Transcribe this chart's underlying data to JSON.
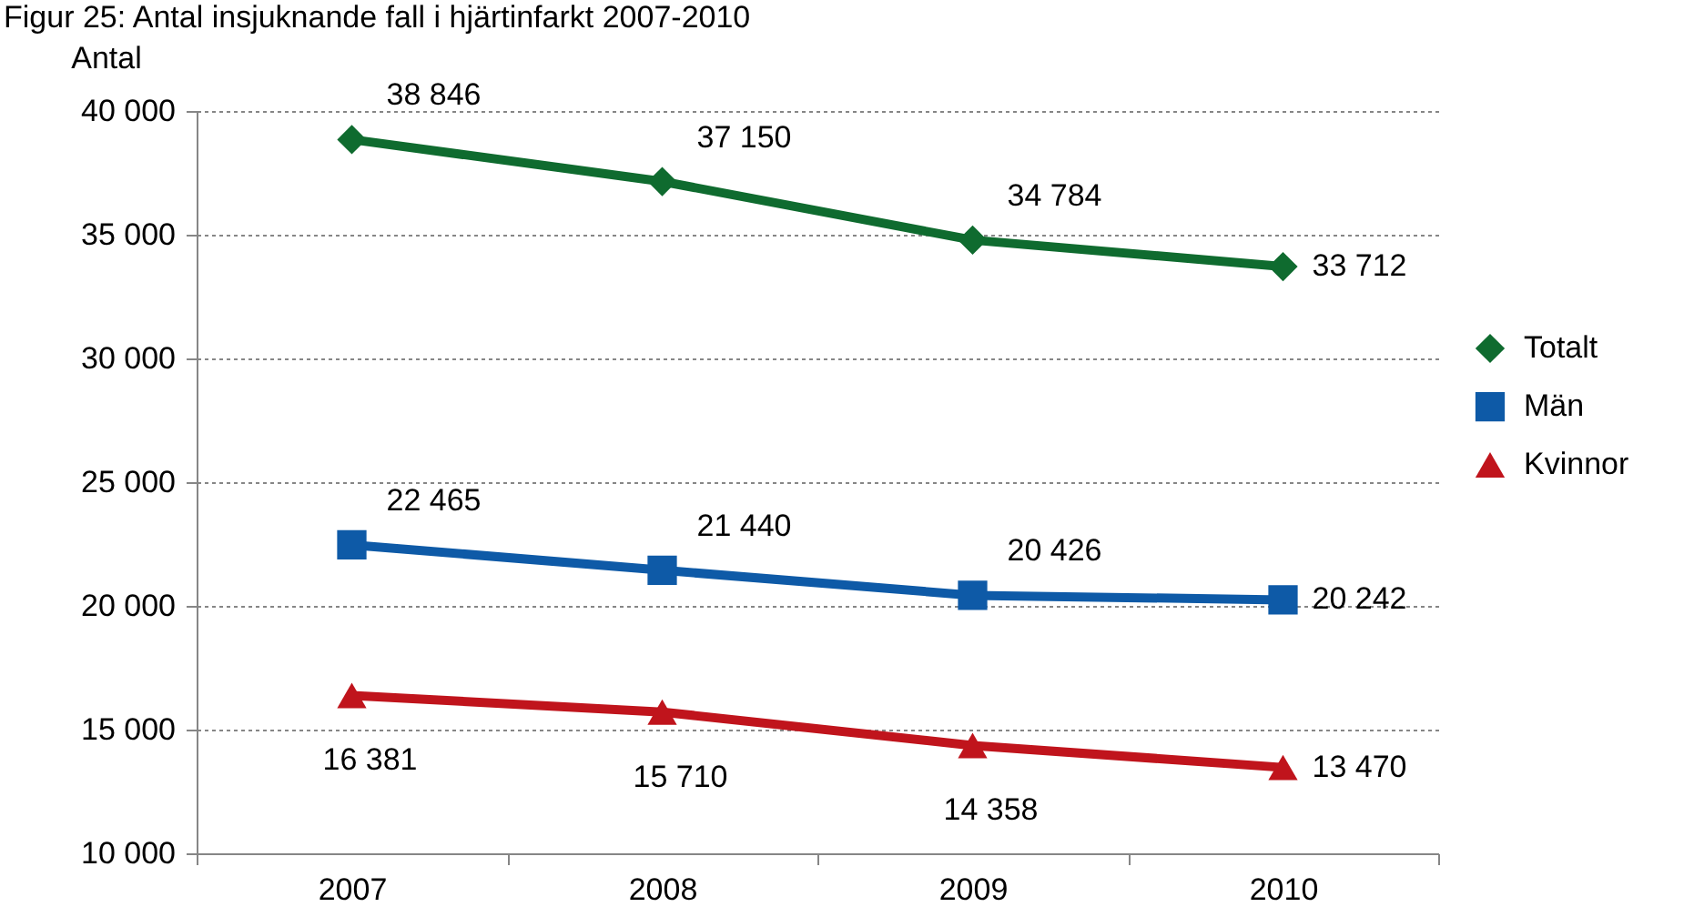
{
  "chart_data": {
    "type": "line",
    "title": "Figur 25: Antal insjuknande fall i hjärtinfarkt 2007-2010",
    "ylabel": "Antal",
    "categories": [
      "2007",
      "2008",
      "2009",
      "2010"
    ],
    "series": [
      {
        "name": "Totalt",
        "color": "#0f6b2f",
        "marker": "diamond",
        "values": [
          38846,
          37150,
          34784,
          33712
        ],
        "value_labels": [
          "38 846",
          "37 150",
          "34 784",
          "33 712"
        ]
      },
      {
        "name": "Män",
        "color": "#0e5aa7",
        "marker": "square",
        "values": [
          22465,
          21440,
          20426,
          20242
        ],
        "value_labels": [
          "22 465",
          "21 440",
          "20 426",
          "20 242"
        ]
      },
      {
        "name": "Kvinnor",
        "color": "#c0141c",
        "marker": "triangle",
        "values": [
          16381,
          15710,
          14358,
          13470
        ],
        "value_labels": [
          "16 381",
          "15 710",
          "14 358",
          "13 470"
        ]
      }
    ],
    "ylim": [
      10000,
      40000
    ],
    "yticks": [
      {
        "value": 10000,
        "label": "10 000"
      },
      {
        "value": 15000,
        "label": "15 000"
      },
      {
        "value": 20000,
        "label": "20 000"
      },
      {
        "value": 25000,
        "label": "25 000"
      },
      {
        "value": 30000,
        "label": "30 000"
      },
      {
        "value": 35000,
        "label": "35 000"
      },
      {
        "value": 40000,
        "label": "40 000"
      }
    ],
    "grid": "y",
    "legend": "right",
    "line_style": "solid"
  }
}
